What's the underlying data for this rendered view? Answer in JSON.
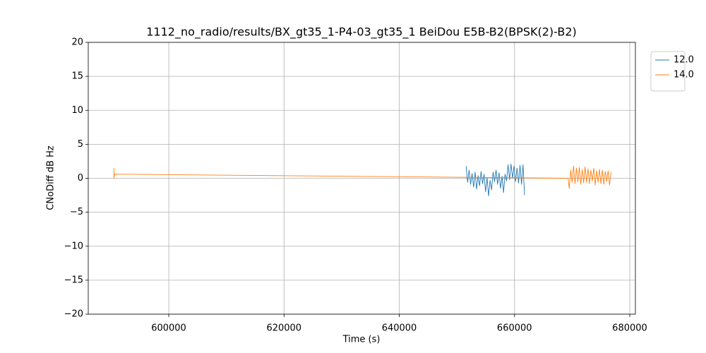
{
  "chart_data": {
    "type": "line",
    "title": "1112_no_radio/results/BX_gt35_1-P4-03_gt35_1 BeiDou E5B-B2(BPSK(2)-B2)",
    "x_label": "Time (s)",
    "y_label": "CNoDiff dB Hz",
    "xlim": [
      586030,
      680980
    ],
    "ylim": [
      -20,
      20
    ],
    "xticks": [
      600000,
      620000,
      640000,
      660000,
      680000
    ],
    "yticks": [
      {
        "value": -20,
        "label": "−20"
      },
      {
        "value": -15,
        "label": "−15"
      },
      {
        "value": -10,
        "label": "−10"
      },
      {
        "value": -5,
        "label": "−5"
      },
      0,
      5,
      10,
      15,
      20
    ],
    "grid": true,
    "legend": "outside-upper-right",
    "series": [
      {
        "name": "12.0",
        "color": "#1f77b4",
        "x": [
          651600,
          651860,
          652120,
          652380,
          652640,
          652900,
          653160,
          653420,
          653680,
          653940,
          654200,
          654460,
          654720,
          654980,
          655240,
          655500,
          655760,
          656020,
          656280,
          656540,
          656800,
          657060,
          657320,
          657580,
          657840,
          658100,
          658360,
          658620,
          658880,
          659140,
          659400,
          659660,
          659920,
          660180,
          660440,
          660700,
          660960,
          661220,
          661480,
          661740
        ],
        "values": [
          1.8,
          -0.6,
          1.2,
          -0.9,
          0.7,
          -1.3,
          0.9,
          -1.6,
          0.4,
          -1.1,
          1.0,
          -0.8,
          0.6,
          -2.0,
          0.1,
          -2.6,
          -0.3,
          -1.7,
          0.9,
          -0.5,
          1.2,
          -0.9,
          0.8,
          -1.5,
          0.3,
          -2.1,
          0.6,
          -0.4,
          2.0,
          -0.2,
          2.1,
          0.0,
          1.8,
          -0.5,
          1.5,
          -0.7,
          1.9,
          -0.9,
          2.0,
          -2.5
        ]
      },
      {
        "name": "14.0",
        "color": "#ff7f0e",
        "x": [
          590500,
          590500,
          590600,
          669300,
          669500,
          669750,
          670000,
          670250,
          670500,
          670750,
          671000,
          671250,
          671500,
          671750,
          672000,
          672250,
          672500,
          672750,
          673000,
          673250,
          673500,
          673750,
          674000,
          674250,
          674500,
          674750,
          675000,
          675250,
          675500,
          675750,
          676000,
          676250,
          676500,
          676750
        ],
        "values": [
          1.5,
          0.0,
          0.6,
          0.0,
          -1.5,
          1.2,
          -0.6,
          1.8,
          -0.8,
          1.5,
          -0.5,
          1.6,
          -0.9,
          1.3,
          -0.7,
          1.7,
          -0.6,
          1.4,
          -0.8,
          1.2,
          -0.4,
          1.5,
          -1.0,
          1.1,
          -0.6,
          1.3,
          -0.8,
          1.2,
          -0.9,
          1.0,
          -0.5,
          1.1,
          -1.0,
          0.9
        ]
      }
    ]
  }
}
